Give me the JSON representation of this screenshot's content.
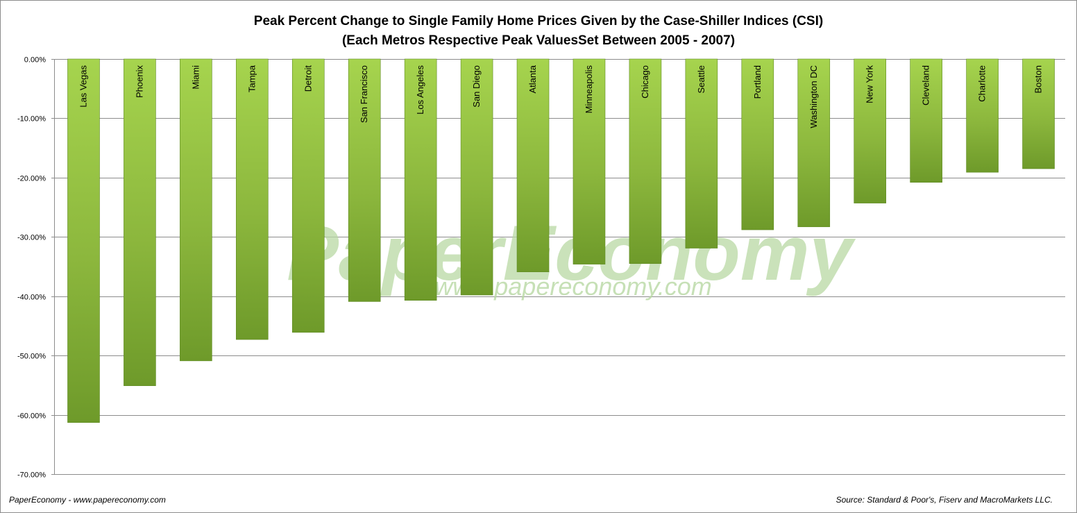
{
  "chart_data": {
    "type": "bar",
    "title_line1": "Peak Percent Change to Single Family Home Prices Given by the Case-Shiller Indices (CSI)",
    "title_line2": "(Each Metros Respective Peak ValuesSet Between 2005 - 2007)",
    "xlabel": "",
    "ylabel": "",
    "ylim": [
      -70,
      0
    ],
    "yticks": [
      "0.00%",
      "-10.00%",
      "-20.00%",
      "-30.00%",
      "-40.00%",
      "-50.00%",
      "-60.00%",
      "-70.00%"
    ],
    "grid": true,
    "legend": "none",
    "categories": [
      "Las Vegas",
      "Phoenix",
      "Miami",
      "Tampa",
      "Detroit",
      "San Francisco",
      "Los Angeles",
      "San Diego",
      "Atlanta",
      "Minneapolis",
      "Chicago",
      "Seattle",
      "Portland",
      "Washington DC",
      "New York",
      "Cleveland",
      "Charlotte",
      "Boston"
    ],
    "values": [
      -61.3,
      -55.1,
      -50.9,
      -47.3,
      -46.1,
      -40.9,
      -40.7,
      -39.8,
      -35.9,
      -34.6,
      -34.5,
      -31.9,
      -28.8,
      -28.3,
      -24.3,
      -20.8,
      -19.1,
      -18.5
    ],
    "colors": {
      "bar_light": "#a6d44e",
      "bar_mid": "#8cb73d",
      "bar_dark": "#6e9a2a",
      "bar_stroke": "#5e8a22",
      "grid": "#8c8c8c",
      "watermark": "#b9d9a4"
    }
  },
  "watermark": {
    "brand": "PaperEconomy",
    "url": "www.papereconomy.com"
  },
  "footer": {
    "left": "PaperEconomy - www.papereconomy.com",
    "right": "Source: Standard & Poor's, Fiserv and MacroMarkets LLC."
  }
}
